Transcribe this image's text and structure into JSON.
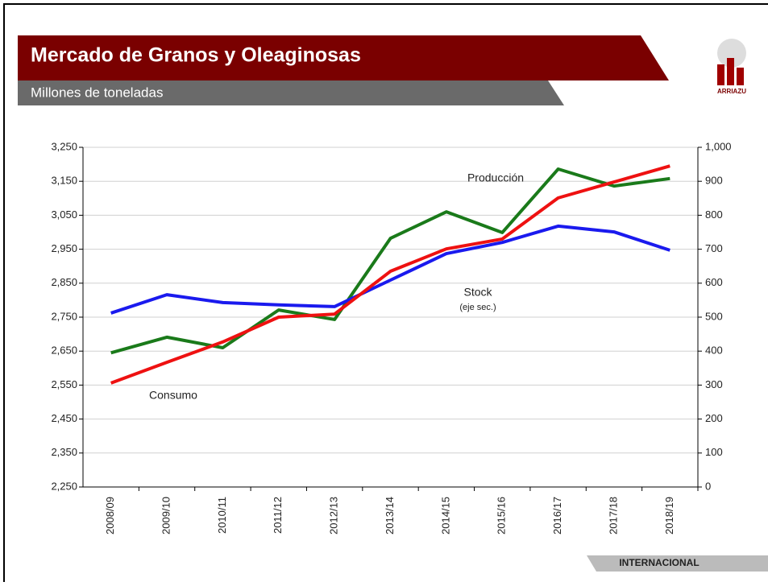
{
  "header": {
    "title": "Mercado de Granos y Oleaginosas",
    "subtitle": "Millones de toneladas",
    "logo": "ARRIAZU"
  },
  "footer": "INTERNACIONAL",
  "chart_data": {
    "type": "line",
    "categories": [
      "2008/09",
      "2009/10",
      "2010/11",
      "2011/12",
      "2012/13",
      "2013/14",
      "2014/15",
      "2015/16",
      "2016/17",
      "2017/18",
      "2018/19"
    ],
    "series": [
      {
        "name": "Producción",
        "color": "#1a7a1a",
        "values": [
          2645,
          2691,
          2660,
          2771,
          2743,
          2982,
          3060,
          2999,
          3186,
          3136,
          3158
        ]
      },
      {
        "name": "Stock",
        "color": "#1a1aee",
        "axis": "y2",
        "values": [
          512,
          566,
          543,
          536,
          531,
          609,
          687,
          720,
          768,
          751,
          697
        ]
      },
      {
        "name": "Consumo",
        "color": "#ee1111",
        "values": [
          2556,
          2617,
          2677,
          2750,
          2759,
          2885,
          2951,
          2980,
          3101,
          3148,
          3195
        ]
      }
    ],
    "annotations": [
      "(eje sec.)"
    ],
    "ylim": [
      2250,
      3250
    ],
    "yticks": [
      {
        "value": 2250,
        "label": "2,250"
      },
      {
        "value": 2350,
        "label": "2,350"
      },
      {
        "value": 2450,
        "label": "2,450"
      },
      {
        "value": 2550,
        "label": "2,550"
      },
      {
        "value": 2650,
        "label": "2,650"
      },
      {
        "value": 2750,
        "label": "2,750"
      },
      {
        "value": 2850,
        "label": "2,850"
      },
      {
        "value": 2950,
        "label": "2,950"
      },
      {
        "value": 3050,
        "label": "3,050"
      },
      {
        "value": 3150,
        "label": "3,150"
      },
      {
        "value": 3250,
        "label": "3,250"
      }
    ],
    "y2lim": [
      0,
      1000
    ],
    "y2ticks": [
      0,
      100,
      200,
      300,
      400,
      500,
      600,
      700,
      800,
      900,
      {
        "value": 1000,
        "label": "1,000"
      }
    ],
    "grid": true
  }
}
